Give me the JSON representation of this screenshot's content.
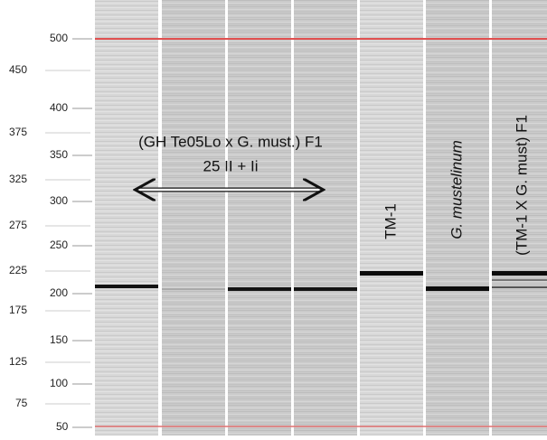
{
  "ladder": {
    "outer": [
      "450",
      "375",
      "325",
      "275",
      "225",
      "175",
      "125",
      "75"
    ],
    "inner": [
      "500",
      "400",
      "350",
      "300",
      "250",
      "200",
      "150",
      "100",
      "50"
    ]
  },
  "annotations": {
    "cross": "(GH Te05Lo x G. must.)  F1",
    "chromosomes": "25 II + Ii",
    "lane_tm1": "TM-1",
    "lane_mustelinum": "G. mustelinum",
    "lane_f1": "(TM-1 X G. must) F1"
  }
}
